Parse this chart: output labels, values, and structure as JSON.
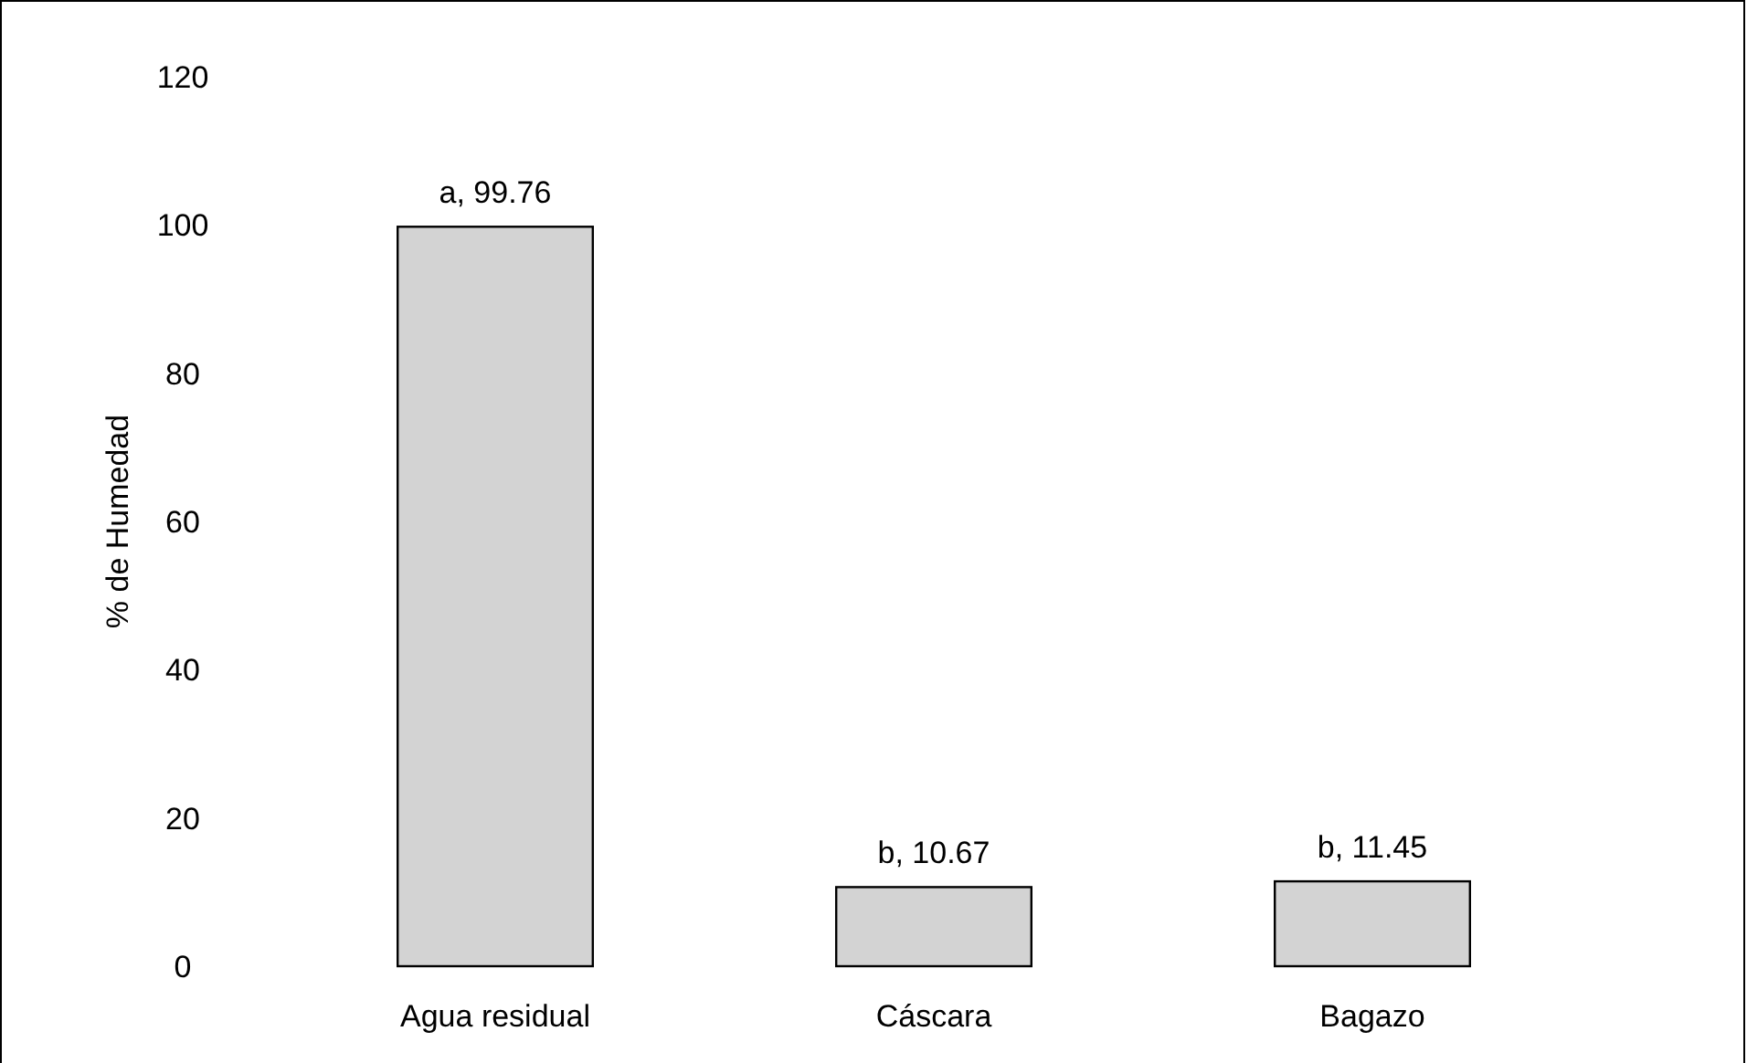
{
  "chart_data": {
    "type": "bar",
    "ylabel": "% de Humedad",
    "categories": [
      "Agua residual",
      "Cáscara",
      "Bagazo"
    ],
    "values": [
      99.76,
      10.67,
      11.45
    ],
    "value_labels": [
      "a, 99.76",
      "b, 10.67",
      "b, 11.45"
    ],
    "color": "#d3d3d3",
    "ylim": [
      0,
      120
    ],
    "yticks": [
      0,
      20,
      40,
      60,
      80,
      100,
      120
    ],
    "grid": false
  }
}
